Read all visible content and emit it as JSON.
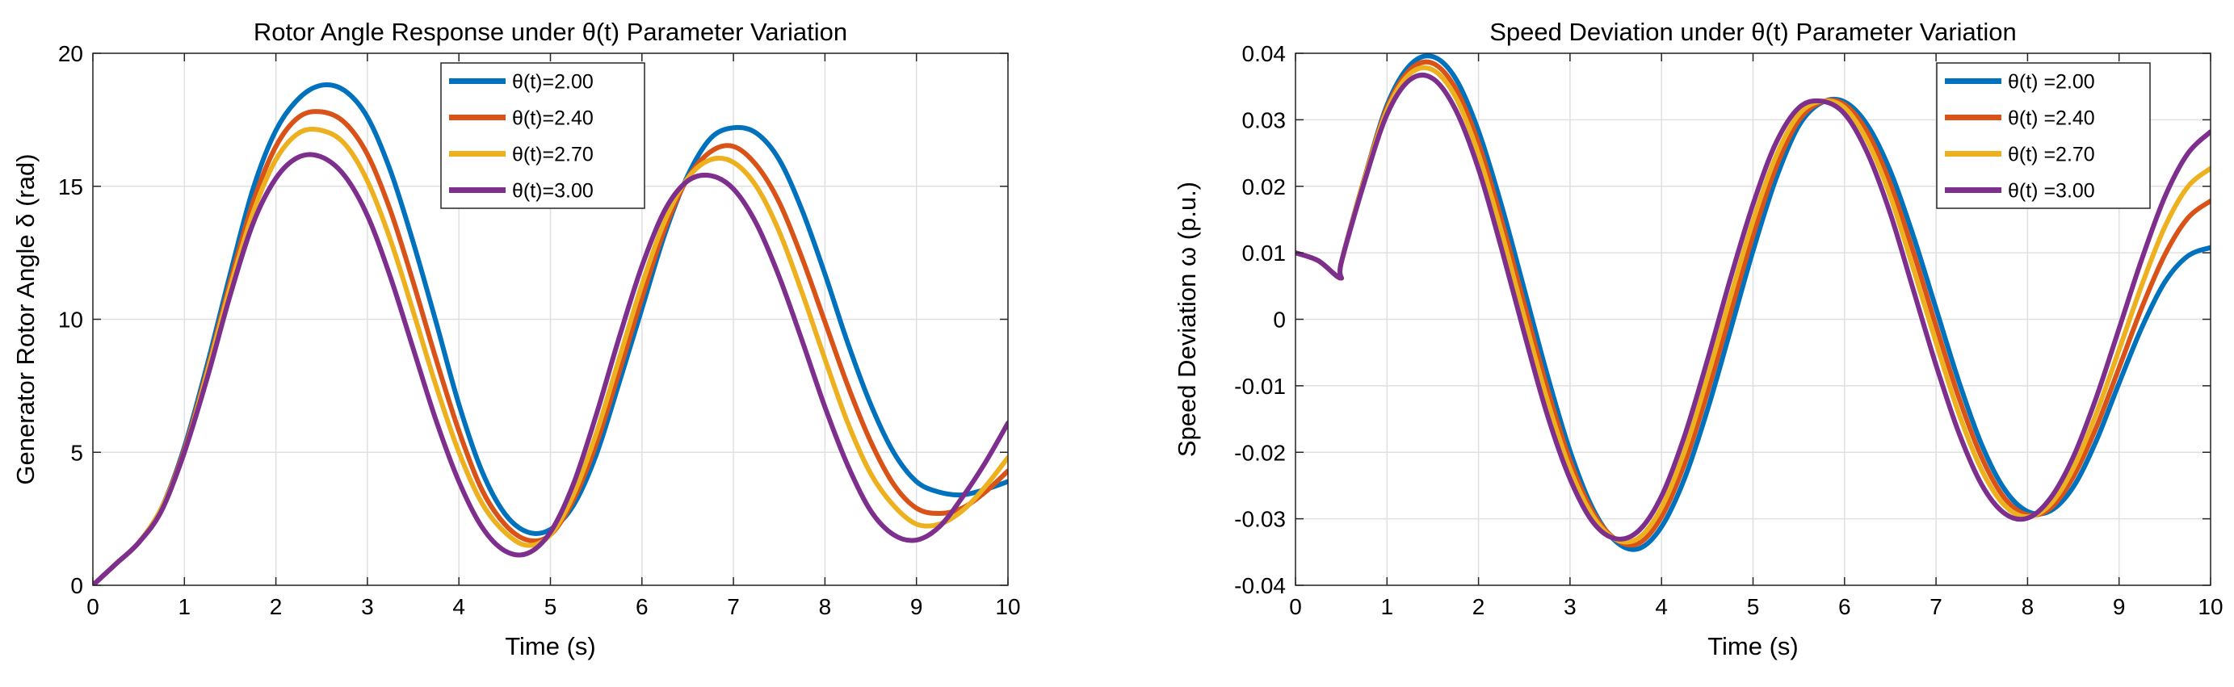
{
  "chart_data": [
    {
      "type": "line",
      "title": "Rotor Angle Response under θ(t) Parameter Variation",
      "xlabel": "Time (s)",
      "ylabel": "Generator Rotor Angle  δ (rad)",
      "xlim": [
        0,
        10
      ],
      "ylim": [
        0,
        20
      ],
      "xticks": [
        0,
        1,
        2,
        3,
        4,
        5,
        6,
        7,
        8,
        9,
        10
      ],
      "yticks": [
        0,
        5,
        10,
        15,
        20
      ],
      "grid": true,
      "legend_position": "top-right",
      "x": [
        0,
        0.25,
        0.5,
        0.75,
        1.0,
        1.25,
        1.5,
        1.75,
        2.0,
        2.25,
        2.5,
        2.75,
        3.0,
        3.25,
        3.5,
        3.75,
        4.0,
        4.25,
        4.5,
        4.75,
        5.0,
        5.25,
        5.5,
        5.75,
        6.0,
        6.25,
        6.5,
        6.75,
        7.0,
        7.25,
        7.5,
        7.75,
        8.0,
        8.25,
        8.5,
        8.75,
        9.0,
        9.25,
        9.5,
        9.75,
        10.0
      ],
      "series": [
        {
          "name": "θ(t)=2.00",
          "color": "#0072BD",
          "values": [
            0,
            0.8,
            1.6,
            2.9,
            5.2,
            8.3,
            11.7,
            14.9,
            17.1,
            18.3,
            18.8,
            18.6,
            17.6,
            15.6,
            12.9,
            9.9,
            6.8,
            4.3,
            2.7,
            2.0,
            2.1,
            3.0,
            4.9,
            7.6,
            10.4,
            13.2,
            15.4,
            16.8,
            17.2,
            17.0,
            16.0,
            14.1,
            11.7,
            9.1,
            6.8,
            5.0,
            3.9,
            3.5,
            3.4,
            3.6,
            3.9
          ]
        },
        {
          "name": "θ(t)=2.40",
          "color": "#D95319",
          "values": [
            0,
            0.8,
            1.6,
            2.9,
            5.1,
            8.1,
            11.4,
            14.4,
            16.5,
            17.6,
            17.8,
            17.4,
            16.2,
            14.1,
            11.4,
            8.5,
            5.8,
            3.6,
            2.3,
            1.7,
            1.9,
            3.2,
            5.3,
            8.0,
            10.8,
            13.4,
            15.3,
            16.3,
            16.5,
            15.8,
            14.4,
            12.3,
            9.9,
            7.5,
            5.4,
            3.8,
            2.9,
            2.7,
            2.9,
            3.5,
            4.3
          ]
        },
        {
          "name": "θ(t)=2.70",
          "color": "#EDB120",
          "values": [
            0,
            0.8,
            1.6,
            2.9,
            5.0,
            8.0,
            11.2,
            14.0,
            16.0,
            17.0,
            17.1,
            16.6,
            15.2,
            13.0,
            10.3,
            7.5,
            5.0,
            3.1,
            2.0,
            1.5,
            1.9,
            3.4,
            5.7,
            8.5,
            11.3,
            13.7,
            15.3,
            16.0,
            15.9,
            15.0,
            13.3,
            11.0,
            8.5,
            6.1,
            4.2,
            3.0,
            2.3,
            2.3,
            2.8,
            3.7,
            4.8
          ]
        },
        {
          "name": "θ(t)=3.00",
          "color": "#7E2F8E",
          "values": [
            0,
            0.8,
            1.6,
            2.8,
            5.0,
            7.8,
            10.9,
            13.6,
            15.3,
            16.1,
            16.1,
            15.4,
            13.9,
            11.6,
            8.9,
            6.2,
            3.9,
            2.2,
            1.3,
            1.2,
            2.0,
            3.8,
            6.4,
            9.3,
            12.0,
            14.1,
            15.2,
            15.4,
            14.9,
            13.6,
            11.6,
            9.2,
            6.7,
            4.5,
            2.8,
            1.9,
            1.7,
            2.2,
            3.3,
            4.6,
            6.1
          ]
        }
      ]
    },
    {
      "type": "line",
      "title": "Speed Deviation under θ(t) Parameter Variation",
      "xlabel": "Time (s)",
      "ylabel": "Speed Deviation ω (p.u.)",
      "xlim": [
        0,
        10
      ],
      "ylim": [
        -0.04,
        0.04
      ],
      "xticks": [
        0,
        1,
        2,
        3,
        4,
        5,
        6,
        7,
        8,
        9,
        10
      ],
      "yticks": [
        -0.04,
        -0.03,
        -0.02,
        -0.01,
        0,
        0.01,
        0.02,
        0.03,
        0.04
      ],
      "ytick_labels": [
        "-0.04",
        "-0.03",
        "-0.02",
        "-0.01",
        "0",
        "0.01",
        "0.02",
        "0.03",
        "0.04"
      ],
      "grid": true,
      "legend_position": "top-right",
      "x": [
        0,
        0.25,
        0.49,
        0.5,
        0.75,
        1.0,
        1.25,
        1.5,
        1.75,
        2.0,
        2.25,
        2.5,
        2.75,
        3.0,
        3.25,
        3.5,
        3.75,
        4.0,
        4.25,
        4.5,
        4.75,
        5.0,
        5.25,
        5.5,
        5.75,
        6.0,
        6.25,
        6.5,
        6.75,
        7.0,
        7.25,
        7.5,
        7.75,
        8.0,
        8.25,
        8.5,
        8.75,
        9.0,
        9.25,
        9.5,
        9.75,
        10.0
      ],
      "series": [
        {
          "name": "θ(t) =2.00",
          "color": "#0072BD",
          "values": [
            0.01,
            0.0088,
            0.0062,
            0.0085,
            0.021,
            0.0322,
            0.0382,
            0.0395,
            0.0362,
            0.0283,
            0.0172,
            0.0045,
            -0.0083,
            -0.0198,
            -0.0285,
            -0.0334,
            -0.0345,
            -0.0312,
            -0.024,
            -0.0137,
            -0.0018,
            0.0103,
            0.0211,
            0.0291,
            0.0326,
            0.0327,
            0.0292,
            0.0223,
            0.0126,
            0.0016,
            -0.0094,
            -0.0189,
            -0.0256,
            -0.0289,
            -0.0288,
            -0.0252,
            -0.0183,
            -0.0096,
            -0.0012,
            0.0056,
            0.0095,
            0.0108
          ]
        },
        {
          "name": "θ(t) =2.40",
          "color": "#D95319",
          "values": [
            0.01,
            0.0088,
            0.0062,
            0.0085,
            0.021,
            0.0318,
            0.0375,
            0.0385,
            0.0347,
            0.0265,
            0.015,
            0.0023,
            -0.0103,
            -0.0212,
            -0.029,
            -0.0331,
            -0.0337,
            -0.0297,
            -0.0218,
            -0.0111,
            0.0008,
            0.0126,
            0.0228,
            0.0299,
            0.0327,
            0.0323,
            0.0281,
            0.0204,
            0.0102,
            -0.001,
            -0.0118,
            -0.0208,
            -0.0269,
            -0.0294,
            -0.0284,
            -0.0237,
            -0.0163,
            -0.0073,
            0.0018,
            0.0097,
            0.0152,
            0.0178
          ]
        },
        {
          "name": "θ(t) =2.70",
          "color": "#EDB120",
          "values": [
            0.01,
            0.0088,
            0.0062,
            0.0085,
            0.0208,
            0.0314,
            0.0369,
            0.0375,
            0.0334,
            0.0248,
            0.0132,
            0.0003,
            -0.0121,
            -0.0225,
            -0.0296,
            -0.0331,
            -0.0329,
            -0.0283,
            -0.0199,
            -0.0088,
            0.0032,
            0.0148,
            0.0245,
            0.0308,
            0.0328,
            0.0318,
            0.0268,
            0.0185,
            0.0077,
            -0.0035,
            -0.0142,
            -0.0227,
            -0.028,
            -0.0297,
            -0.0278,
            -0.0224,
            -0.0142,
            -0.0046,
            0.0052,
            0.0139,
            0.0199,
            0.0227
          ]
        },
        {
          "name": "θ(t) =3.00",
          "color": "#7E2F8E",
          "values": [
            0.01,
            0.0088,
            0.0062,
            0.0085,
            0.0205,
            0.0308,
            0.036,
            0.0362,
            0.0315,
            0.0226,
            0.0107,
            -0.0021,
            -0.0143,
            -0.024,
            -0.0305,
            -0.033,
            -0.0318,
            -0.0266,
            -0.0176,
            -0.0062,
            0.006,
            0.0173,
            0.0265,
            0.0318,
            0.0328,
            0.0309,
            0.025,
            0.0159,
            0.0045,
            -0.0069,
            -0.0171,
            -0.0249,
            -0.0292,
            -0.0299,
            -0.0269,
            -0.0207,
            -0.0118,
            -0.0014,
            0.0091,
            0.0184,
            0.0249,
            0.0282
          ]
        }
      ]
    }
  ]
}
